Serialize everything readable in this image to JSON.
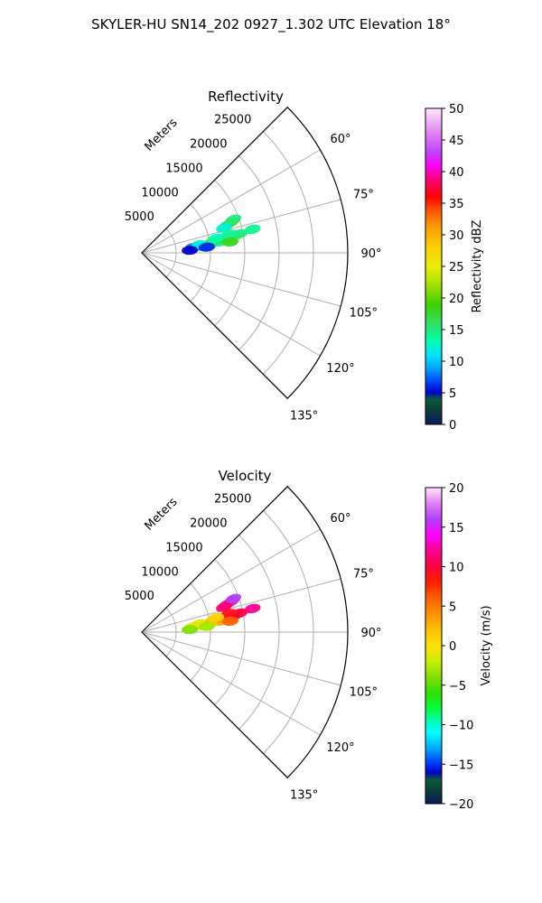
{
  "suptitle": "SKYLER-HU  SN14_202  0927_1.302 UTC Elevation 18°",
  "colors": {
    "grid": "#b0b0b0",
    "spine": "#000000"
  },
  "chart_data": [
    {
      "type": "polar-sector",
      "title": "Reflectivity",
      "radial_label": "Meters",
      "radial_ticks": [
        5000,
        10000,
        15000,
        20000,
        25000
      ],
      "radial_tick_labels": [
        "5000",
        "10000",
        "15000",
        "20000",
        "25000"
      ],
      "rmax": 30000,
      "theta_range_deg": [
        45,
        135
      ],
      "theta_ticks_deg": [
        60,
        75,
        90,
        105,
        120,
        135
      ],
      "theta_tick_labels": [
        "60°",
        "75°",
        "90°",
        "105°",
        "120°",
        "135°"
      ],
      "grid": true,
      "colorbar": {
        "label": "Reflectivity dBZ",
        "min": 0,
        "max": 50,
        "ticks": [
          0,
          5,
          10,
          15,
          20,
          25,
          30,
          35,
          40,
          45,
          50
        ],
        "tick_labels": [
          "0",
          "5",
          "10",
          "15",
          "20",
          "25",
          "30",
          "35",
          "40",
          "45",
          "50"
        ],
        "stops": [
          {
            "v": 0,
            "c": "#0a1a5c"
          },
          {
            "v": 2,
            "c": "#0b3a3a"
          },
          {
            "v": 4,
            "c": "#0b5a3a"
          },
          {
            "v": 5,
            "c": "#0000c8"
          },
          {
            "v": 7,
            "c": "#0050ff"
          },
          {
            "v": 9,
            "c": "#00aaff"
          },
          {
            "v": 11,
            "c": "#00e0ff"
          },
          {
            "v": 13,
            "c": "#00ffb0"
          },
          {
            "v": 16,
            "c": "#30e060"
          },
          {
            "v": 19,
            "c": "#40d000"
          },
          {
            "v": 22,
            "c": "#a0e000"
          },
          {
            "v": 25,
            "c": "#e8f000"
          },
          {
            "v": 28,
            "c": "#ffd000"
          },
          {
            "v": 31,
            "c": "#ffa000"
          },
          {
            "v": 34,
            "c": "#ff5000"
          },
          {
            "v": 36,
            "c": "#ff0000"
          },
          {
            "v": 39,
            "c": "#ff0080"
          },
          {
            "v": 41,
            "c": "#ff00ff"
          },
          {
            "v": 43,
            "c": "#c040ff"
          },
          {
            "v": 46,
            "c": "#e080f0"
          },
          {
            "v": 50,
            "c": "#ffe8ff"
          }
        ]
      },
      "echoes": [
        {
          "az_deg": 72,
          "range_m": 13000,
          "value": 15
        },
        {
          "az_deg": 71,
          "range_m": 13800,
          "value": 20
        },
        {
          "az_deg": 70,
          "range_m": 14200,
          "value": 15
        },
        {
          "az_deg": 73,
          "range_m": 12500,
          "value": 12
        },
        {
          "az_deg": 81,
          "range_m": 12800,
          "value": 15
        },
        {
          "az_deg": 80,
          "range_m": 13600,
          "value": 22
        },
        {
          "az_deg": 79,
          "range_m": 14500,
          "value": 15
        },
        {
          "az_deg": 82,
          "range_m": 11500,
          "value": 14
        },
        {
          "az_deg": 83,
          "range_m": 10000,
          "value": 12
        },
        {
          "az_deg": 84,
          "range_m": 9000,
          "value": 10
        },
        {
          "az_deg": 84,
          "range_m": 7500,
          "value": 8
        },
        {
          "az_deg": 82,
          "range_m": 8500,
          "value": 12
        },
        {
          "az_deg": 81,
          "range_m": 10500,
          "value": 16
        },
        {
          "az_deg": 80,
          "range_m": 11800,
          "value": 18
        },
        {
          "az_deg": 78,
          "range_m": 13000,
          "value": 14
        },
        {
          "az_deg": 78,
          "range_m": 16500,
          "value": 14
        },
        {
          "az_deg": 85,
          "range_m": 9500,
          "value": 6
        },
        {
          "az_deg": 87,
          "range_m": 7000,
          "value": 5
        },
        {
          "az_deg": 83,
          "range_m": 13000,
          "value": 18
        },
        {
          "az_deg": 79,
          "range_m": 11000,
          "value": 13
        }
      ]
    },
    {
      "type": "polar-sector",
      "title": "Velocity",
      "radial_label": "Meters",
      "radial_ticks": [
        5000,
        10000,
        15000,
        20000,
        25000
      ],
      "radial_tick_labels": [
        "5000",
        "10000",
        "15000",
        "20000",
        "25000"
      ],
      "rmax": 30000,
      "theta_range_deg": [
        45,
        135
      ],
      "theta_ticks_deg": [
        60,
        75,
        90,
        105,
        120,
        135
      ],
      "theta_tick_labels": [
        "60°",
        "75°",
        "90°",
        "105°",
        "120°",
        "135°"
      ],
      "grid": true,
      "colorbar": {
        "label": "Velocity (m/s)",
        "min": -20,
        "max": 20,
        "ticks": [
          -20,
          -15,
          -10,
          -5,
          0,
          5,
          10,
          15,
          20
        ],
        "tick_labels": [
          "−20",
          "−15",
          "−10",
          "−5",
          "0",
          "5",
          "10",
          "15",
          "20"
        ],
        "stops": [
          {
            "v": -20,
            "c": "#0a1a5c"
          },
          {
            "v": -18.5,
            "c": "#0b3a3a"
          },
          {
            "v": -17,
            "c": "#0b5a3a"
          },
          {
            "v": -16,
            "c": "#0000c8"
          },
          {
            "v": -14.5,
            "c": "#0050ff"
          },
          {
            "v": -13,
            "c": "#00aaff"
          },
          {
            "v": -11,
            "c": "#00ffff"
          },
          {
            "v": -9.5,
            "c": "#00ffb0"
          },
          {
            "v": -8,
            "c": "#00ff40"
          },
          {
            "v": -6,
            "c": "#30e000"
          },
          {
            "v": -4,
            "c": "#80e000"
          },
          {
            "v": -2,
            "c": "#c8f000"
          },
          {
            "v": 0,
            "c": "#ffe000"
          },
          {
            "v": 2,
            "c": "#ffc000"
          },
          {
            "v": 4,
            "c": "#ff9000"
          },
          {
            "v": 6,
            "c": "#ff6000"
          },
          {
            "v": 8,
            "c": "#ff2000"
          },
          {
            "v": 10,
            "c": "#ff0040"
          },
          {
            "v": 12,
            "c": "#ff0090"
          },
          {
            "v": 14,
            "c": "#ff00ff"
          },
          {
            "v": 16,
            "c": "#b040ff"
          },
          {
            "v": 18,
            "c": "#e080f0"
          },
          {
            "v": 20,
            "c": "#ffe8ff"
          }
        ]
      },
      "echoes": [
        {
          "az_deg": 72,
          "range_m": 13000,
          "value": 14
        },
        {
          "az_deg": 71,
          "range_m": 13800,
          "value": 12
        },
        {
          "az_deg": 70,
          "range_m": 14200,
          "value": 16
        },
        {
          "az_deg": 73,
          "range_m": 12500,
          "value": 11
        },
        {
          "az_deg": 81,
          "range_m": 12800,
          "value": 5
        },
        {
          "az_deg": 80,
          "range_m": 13600,
          "value": 8
        },
        {
          "az_deg": 79,
          "range_m": 14500,
          "value": 10
        },
        {
          "az_deg": 82,
          "range_m": 11500,
          "value": 3
        },
        {
          "az_deg": 83,
          "range_m": 10000,
          "value": 1
        },
        {
          "az_deg": 84,
          "range_m": 9000,
          "value": -2
        },
        {
          "az_deg": 84,
          "range_m": 7500,
          "value": 0
        },
        {
          "az_deg": 82,
          "range_m": 8500,
          "value": -1
        },
        {
          "az_deg": 81,
          "range_m": 10500,
          "value": 2
        },
        {
          "az_deg": 80,
          "range_m": 11800,
          "value": 4
        },
        {
          "az_deg": 78,
          "range_m": 13000,
          "value": 9
        },
        {
          "az_deg": 78,
          "range_m": 16500,
          "value": 12
        },
        {
          "az_deg": 85,
          "range_m": 9500,
          "value": -3
        },
        {
          "az_deg": 87,
          "range_m": 7000,
          "value": -4
        },
        {
          "az_deg": 83,
          "range_m": 13000,
          "value": 6
        },
        {
          "az_deg": 79,
          "range_m": 11000,
          "value": 1
        }
      ]
    }
  ]
}
